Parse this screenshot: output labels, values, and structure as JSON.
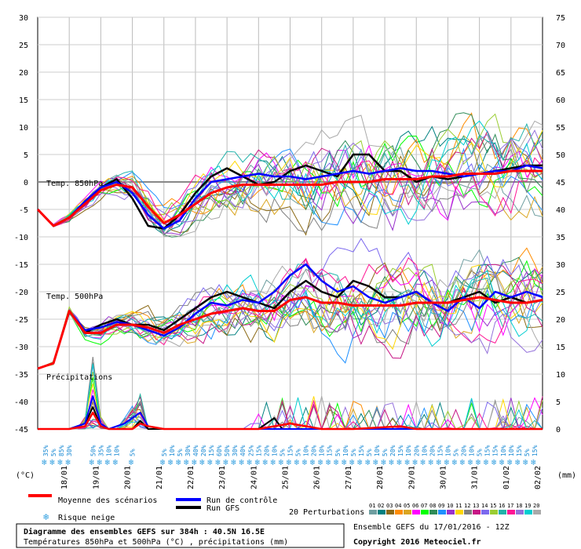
{
  "chart_data": {
    "type": "line",
    "title": "Diagramme des ensembles GEFS sur 384h : 40.5N 16.5E",
    "subtitle": "Températures 850hPa et 500hPa (°C) , précipitations (mm)",
    "run_info": "Ensemble GEFS du 17/01/2016 - 12Z",
    "copyright": "Copyright 2016 Meteociel.fr",
    "left_axis": {
      "unit": "(°C)",
      "ticks": [
        30,
        25,
        20,
        15,
        10,
        5,
        0,
        -5,
        -10,
        -15,
        -20,
        -25,
        -30,
        -35,
        -40,
        -45
      ],
      "range": [
        -45,
        30
      ]
    },
    "right_axis": {
      "unit": "(mm)",
      "ticks": [
        75,
        70,
        65,
        60,
        55,
        50,
        45,
        40,
        35,
        30,
        25,
        20,
        15,
        10,
        5,
        0
      ]
    },
    "x_axis": {
      "labels": [
        "18/01",
        "19/01",
        "20/01",
        "21/01",
        "22/01",
        "23/01",
        "24/01",
        "25/01",
        "26/01",
        "27/01",
        "28/01",
        "29/01",
        "30/01",
        "31/01",
        "01/02",
        "02/02"
      ],
      "step_hours": 6,
      "total_hours": 384
    },
    "section_labels": {
      "t850": "Temp. 850hPa",
      "t500": "Temp. 500hPa",
      "precip": "Précipitations"
    },
    "legend": {
      "mean": "Moyenne des scénarios",
      "control": "Run de contrôle",
      "gfs": "Run GFS",
      "snow": "Risque neige",
      "perturbations": "20 Perturbations",
      "perturbation_numbers": [
        "01",
        "02",
        "03",
        "04",
        "05",
        "06",
        "07",
        "08",
        "09",
        "10",
        "11",
        "12",
        "13",
        "14",
        "15",
        "16",
        "17",
        "18",
        "19",
        "20"
      ]
    },
    "colors": {
      "mean": "#ff0000",
      "control": "#0000ff",
      "gfs": "#000000",
      "perturbations": [
        "#6e9ea0",
        "#008080",
        "#8b6914",
        "#ff8c00",
        "#daa520",
        "#ff00ff",
        "#00ff00",
        "#2e8b57",
        "#1e90ff",
        "#9932cc",
        "#ffd700",
        "#808080",
        "#c71585",
        "#7b68ee",
        "#9acd32",
        "#20b2aa",
        "#ff1493",
        "#9370db",
        "#00ced1",
        "#a9a9a9"
      ]
    },
    "t850": {
      "mean": [
        [
          0,
          -5
        ],
        [
          12,
          -8
        ],
        [
          24,
          -6.5
        ],
        [
          36,
          -4
        ],
        [
          48,
          -1.5
        ],
        [
          60,
          -0.5
        ],
        [
          72,
          -1
        ],
        [
          84,
          -4.5
        ],
        [
          96,
          -7.5
        ],
        [
          108,
          -6
        ],
        [
          120,
          -4
        ],
        [
          132,
          -2
        ],
        [
          144,
          -1
        ],
        [
          156,
          -0.5
        ],
        [
          168,
          -0.5
        ],
        [
          180,
          -0.5
        ],
        [
          192,
          -0.5
        ],
        [
          204,
          -0.5
        ],
        [
          216,
          -0.5
        ],
        [
          228,
          0
        ],
        [
          240,
          0
        ],
        [
          252,
          0
        ],
        [
          264,
          0.5
        ],
        [
          276,
          0.5
        ],
        [
          288,
          0.5
        ],
        [
          300,
          1
        ],
        [
          312,
          1
        ],
        [
          324,
          1.5
        ],
        [
          336,
          1.5
        ],
        [
          348,
          1.5
        ],
        [
          360,
          2
        ],
        [
          372,
          2
        ],
        [
          384,
          2
        ]
      ],
      "control": [
        [
          0,
          -5
        ],
        [
          12,
          -8
        ],
        [
          24,
          -6.5
        ],
        [
          36,
          -3.5
        ],
        [
          48,
          -1
        ],
        [
          60,
          0
        ],
        [
          72,
          -2
        ],
        [
          84,
          -6
        ],
        [
          96,
          -8.5
        ],
        [
          108,
          -7
        ],
        [
          120,
          -3
        ],
        [
          132,
          0
        ],
        [
          144,
          0.5
        ],
        [
          156,
          1
        ],
        [
          168,
          1.5
        ],
        [
          180,
          1
        ],
        [
          192,
          1
        ],
        [
          204,
          0.5
        ],
        [
          216,
          1
        ],
        [
          228,
          1.5
        ],
        [
          240,
          2
        ],
        [
          252,
          1.5
        ],
        [
          264,
          2
        ],
        [
          276,
          2.5
        ],
        [
          288,
          2
        ],
        [
          300,
          2
        ],
        [
          312,
          1.5
        ],
        [
          324,
          1
        ],
        [
          336,
          1.5
        ],
        [
          348,
          2
        ],
        [
          360,
          2
        ],
        [
          372,
          3
        ],
        [
          384,
          2.5
        ]
      ],
      "gfs": [
        [
          0,
          -5
        ],
        [
          12,
          -8
        ],
        [
          24,
          -6.5
        ],
        [
          36,
          -4
        ],
        [
          48,
          -1
        ],
        [
          60,
          0.5
        ],
        [
          72,
          -3
        ],
        [
          84,
          -8
        ],
        [
          96,
          -8.5
        ],
        [
          108,
          -6
        ],
        [
          120,
          -2
        ],
        [
          132,
          1
        ],
        [
          144,
          2.5
        ],
        [
          156,
          1
        ],
        [
          168,
          -0.5
        ],
        [
          180,
          0
        ],
        [
          192,
          2
        ],
        [
          204,
          3
        ],
        [
          216,
          2
        ],
        [
          228,
          1
        ],
        [
          240,
          5
        ],
        [
          252,
          5
        ],
        [
          264,
          2
        ],
        [
          276,
          2
        ],
        [
          288,
          0
        ],
        [
          300,
          1
        ],
        [
          312,
          0.5
        ],
        [
          324,
          1
        ],
        [
          336,
          1.5
        ],
        [
          348,
          2
        ],
        [
          360,
          2.5
        ],
        [
          372,
          3
        ],
        [
          384,
          3
        ]
      ]
    },
    "t500": {
      "mean": [
        [
          0,
          -34
        ],
        [
          12,
          -33
        ],
        [
          24,
          -23.5
        ],
        [
          36,
          -27.5
        ],
        [
          48,
          -27.5
        ],
        [
          60,
          -26
        ],
        [
          72,
          -26
        ],
        [
          84,
          -26.5
        ],
        [
          96,
          -27.5
        ],
        [
          108,
          -26
        ],
        [
          120,
          -25
        ],
        [
          132,
          -24
        ],
        [
          144,
          -23.5
        ],
        [
          156,
          -23
        ],
        [
          168,
          -23.5
        ],
        [
          180,
          -23.5
        ],
        [
          192,
          -21.5
        ],
        [
          204,
          -21
        ],
        [
          216,
          -22
        ],
        [
          228,
          -22
        ],
        [
          240,
          -22.5
        ],
        [
          252,
          -22.5
        ],
        [
          264,
          -22.5
        ],
        [
          276,
          -22.5
        ],
        [
          288,
          -22
        ],
        [
          300,
          -22
        ],
        [
          312,
          -22
        ],
        [
          324,
          -21.5
        ],
        [
          336,
          -21
        ],
        [
          348,
          -21.5
        ],
        [
          360,
          -22
        ],
        [
          372,
          -22
        ],
        [
          384,
          -21.5
        ]
      ],
      "control": [
        [
          0,
          -34
        ],
        [
          12,
          -33
        ],
        [
          24,
          -23.5
        ],
        [
          36,
          -27
        ],
        [
          48,
          -26.5
        ],
        [
          60,
          -25.5
        ],
        [
          72,
          -26
        ],
        [
          84,
          -27
        ],
        [
          96,
          -28
        ],
        [
          108,
          -26.5
        ],
        [
          120,
          -24
        ],
        [
          132,
          -22
        ],
        [
          144,
          -22.5
        ],
        [
          156,
          -21.5
        ],
        [
          168,
          -22
        ],
        [
          180,
          -20
        ],
        [
          192,
          -17
        ],
        [
          204,
          -15
        ],
        [
          216,
          -18
        ],
        [
          228,
          -20
        ],
        [
          240,
          -19
        ],
        [
          252,
          -21
        ],
        [
          264,
          -22
        ],
        [
          276,
          -21
        ],
        [
          288,
          -20
        ],
        [
          300,
          -22
        ],
        [
          312,
          -23.5
        ],
        [
          324,
          -21
        ],
        [
          336,
          -23
        ],
        [
          348,
          -20
        ],
        [
          360,
          -21
        ],
        [
          372,
          -20
        ],
        [
          384,
          -21
        ]
      ],
      "gfs": [
        [
          0,
          -34
        ],
        [
          12,
          -33
        ],
        [
          24,
          -23.5
        ],
        [
          36,
          -27.5
        ],
        [
          48,
          -26
        ],
        [
          60,
          -25
        ],
        [
          72,
          -26
        ],
        [
          84,
          -26
        ],
        [
          96,
          -27
        ],
        [
          108,
          -25
        ],
        [
          120,
          -23
        ],
        [
          132,
          -21
        ],
        [
          144,
          -20
        ],
        [
          156,
          -21
        ],
        [
          168,
          -22
        ],
        [
          180,
          -23
        ],
        [
          192,
          -20
        ],
        [
          204,
          -18
        ],
        [
          216,
          -20
        ],
        [
          228,
          -21
        ],
        [
          240,
          -18
        ],
        [
          252,
          -19
        ],
        [
          264,
          -21
        ],
        [
          276,
          -21
        ],
        [
          288,
          -20
        ],
        [
          300,
          -22
        ],
        [
          312,
          -22
        ],
        [
          324,
          -21
        ],
        [
          336,
          -20
        ],
        [
          348,
          -22
        ],
        [
          360,
          -21
        ],
        [
          372,
          -22
        ],
        [
          384,
          -21.5
        ]
      ]
    },
    "precip": {
      "mean": [
        [
          0,
          0
        ],
        [
          24,
          0
        ],
        [
          36,
          0.5
        ],
        [
          42,
          3
        ],
        [
          48,
          0.5
        ],
        [
          54,
          0
        ],
        [
          72,
          0
        ],
        [
          78,
          1
        ],
        [
          84,
          0.5
        ],
        [
          96,
          0
        ],
        [
          168,
          0
        ],
        [
          180,
          0.5
        ],
        [
          192,
          1
        ],
        [
          204,
          0.5
        ],
        [
          216,
          0
        ],
        [
          240,
          0
        ],
        [
          276,
          0.5
        ],
        [
          288,
          0
        ],
        [
          384,
          0
        ]
      ],
      "control": [
        [
          0,
          0
        ],
        [
          24,
          0
        ],
        [
          36,
          1
        ],
        [
          42,
          6
        ],
        [
          48,
          1
        ],
        [
          54,
          0
        ],
        [
          66,
          1
        ],
        [
          72,
          2
        ],
        [
          78,
          3
        ],
        [
          84,
          0.5
        ],
        [
          96,
          0
        ],
        [
          384,
          0
        ]
      ],
      "gfs": [
        [
          0,
          0
        ],
        [
          24,
          0
        ],
        [
          36,
          1
        ],
        [
          42,
          4
        ],
        [
          48,
          0.5
        ],
        [
          54,
          0
        ],
        [
          72,
          0
        ],
        [
          78,
          1.5
        ],
        [
          84,
          0
        ],
        [
          168,
          0
        ],
        [
          180,
          2
        ],
        [
          186,
          0
        ],
        [
          384,
          0
        ]
      ]
    },
    "snow_risk": [
      {
        "h": 6,
        "p": "35%"
      },
      {
        "h": 12,
        "p": "5%"
      },
      {
        "h": 18,
        "p": "85%"
      },
      {
        "h": 24,
        "p": "30%"
      },
      {
        "h": 42,
        "p": "50%"
      },
      {
        "h": 48,
        "p": "35%"
      },
      {
        "h": 54,
        "p": "10%"
      },
      {
        "h": 60,
        "p": "10%"
      },
      {
        "h": 72,
        "p": "5%"
      },
      {
        "h": 96,
        "p": "5%"
      },
      {
        "h": 102,
        "p": "10%"
      },
      {
        "h": 108,
        "p": "5%"
      },
      {
        "h": 114,
        "p": "30%"
      },
      {
        "h": 120,
        "p": "40%"
      },
      {
        "h": 126,
        "p": "20%"
      },
      {
        "h": 132,
        "p": "15%"
      },
      {
        "h": 138,
        "p": "60%"
      },
      {
        "h": 144,
        "p": "50%"
      },
      {
        "h": 150,
        "p": "30%"
      },
      {
        "h": 156,
        "p": "40%"
      },
      {
        "h": 162,
        "p": "25%"
      },
      {
        "h": 168,
        "p": "15%"
      },
      {
        "h": 174,
        "p": "20%"
      },
      {
        "h": 180,
        "p": "10%"
      },
      {
        "h": 186,
        "p": "5%"
      },
      {
        "h": 192,
        "p": "15%"
      },
      {
        "h": 198,
        "p": "5%"
      },
      {
        "h": 204,
        "p": "10%"
      },
      {
        "h": 210,
        "p": "20%"
      },
      {
        "h": 216,
        "p": "10%"
      },
      {
        "h": 222,
        "p": "15%"
      },
      {
        "h": 228,
        "p": "5%"
      },
      {
        "h": 234,
        "p": "10%"
      },
      {
        "h": 240,
        "p": "5%"
      },
      {
        "h": 246,
        "p": "15%"
      },
      {
        "h": 252,
        "p": "5%"
      },
      {
        "h": 258,
        "p": "10%"
      },
      {
        "h": 264,
        "p": "5%"
      },
      {
        "h": 270,
        "p": "20%"
      },
      {
        "h": 276,
        "p": "15%"
      },
      {
        "h": 282,
        "p": "10%"
      },
      {
        "h": 288,
        "p": "20%"
      },
      {
        "h": 294,
        "p": "10%"
      },
      {
        "h": 300,
        "p": "20%"
      },
      {
        "h": 306,
        "p": "15%"
      },
      {
        "h": 312,
        "p": "10%"
      },
      {
        "h": 318,
        "p": "5%"
      },
      {
        "h": 324,
        "p": "20%"
      },
      {
        "h": 330,
        "p": "10%"
      },
      {
        "h": 336,
        "p": "5%"
      },
      {
        "h": 342,
        "p": "15%"
      },
      {
        "h": 348,
        "p": "15%"
      },
      {
        "h": 354,
        "p": "10%"
      },
      {
        "h": 360,
        "p": "10%"
      },
      {
        "h": 366,
        "p": "15%"
      },
      {
        "h": 372,
        "p": "5%"
      },
      {
        "h": 378,
        "p": "15%"
      }
    ]
  }
}
